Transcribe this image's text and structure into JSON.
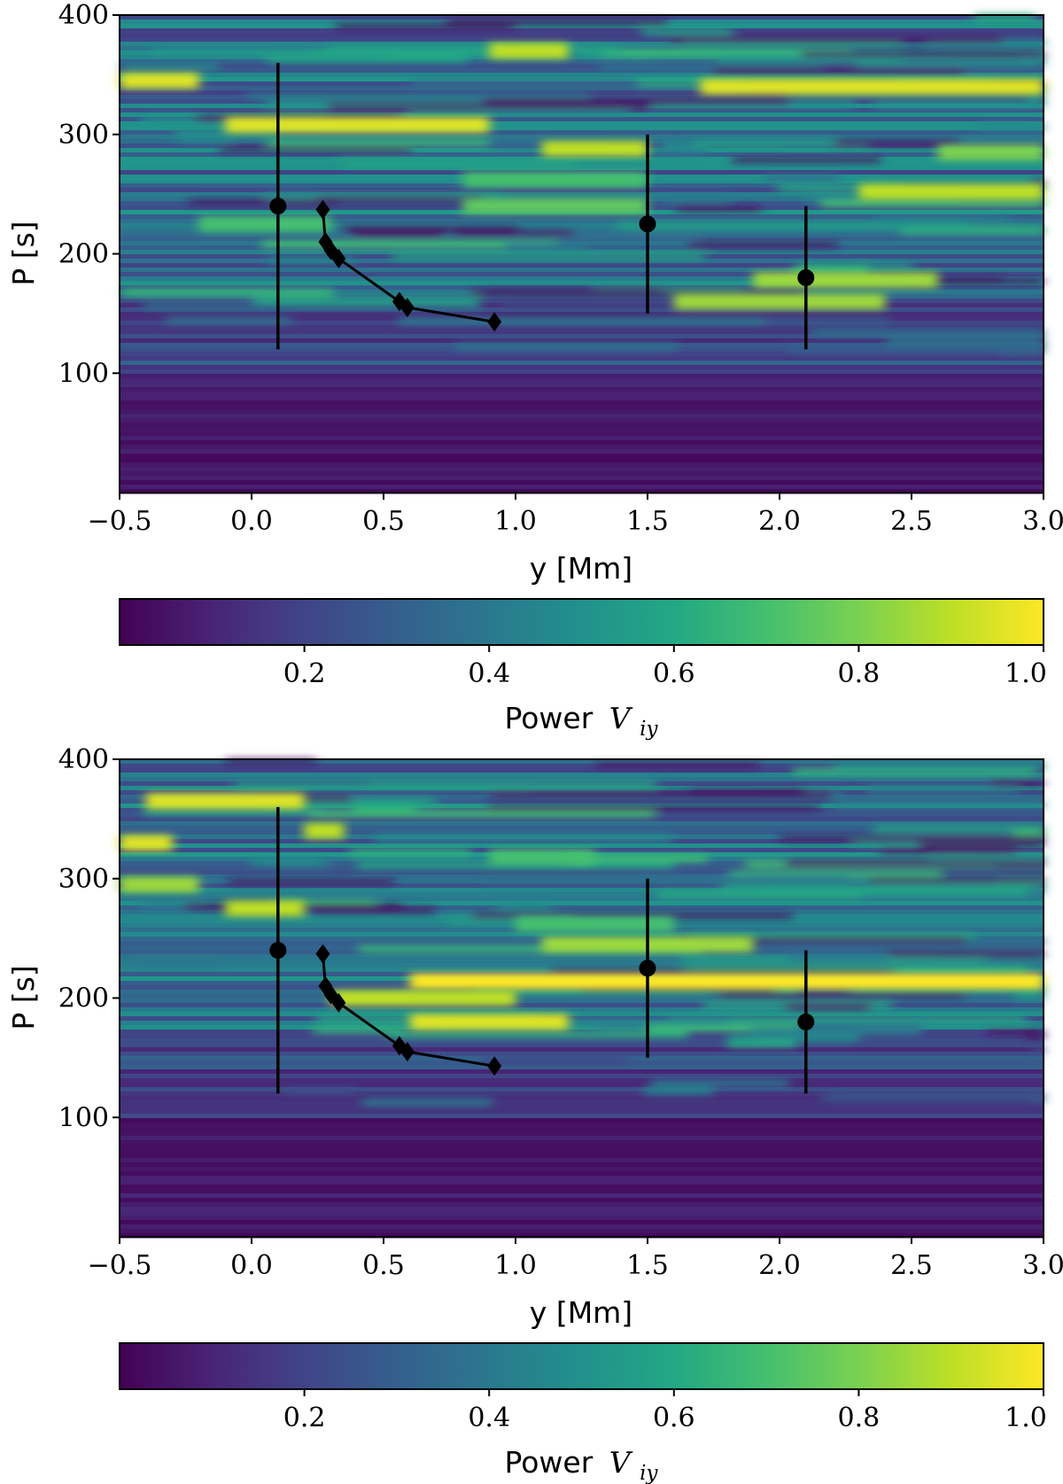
{
  "chart_data": [
    {
      "type": "heatmap",
      "panel": "top",
      "xlabel": "y [Mm]",
      "ylabel": "P [s]",
      "xlim": [
        -0.5,
        3.0
      ],
      "ylim": [
        0,
        400
      ],
      "xticks": [
        -0.5,
        0.0,
        0.5,
        1.0,
        1.5,
        2.0,
        2.5,
        3.0
      ],
      "xtick_labels": [
        "−0.5",
        "0.0",
        "0.5",
        "1.0",
        "1.5",
        "2.0",
        "2.5",
        "3.0"
      ],
      "yticks": [
        100,
        200,
        300,
        400
      ],
      "ytick_labels": [
        "100",
        "200",
        "300",
        "400"
      ],
      "colormap": "viridis",
      "colorbar": {
        "label_prefix": "Power",
        "label_var": "V",
        "label_sub": "iy",
        "range": [
          0,
          1.0
        ],
        "ticks": [
          0.2,
          0.4,
          0.6,
          0.8,
          1.0
        ],
        "tick_labels": [
          "0.2",
          "0.4",
          "0.6",
          "0.8",
          "1.0"
        ]
      },
      "bright_bands": [
        {
          "y_range": [
            -0.5,
            -0.2
          ],
          "period": 345,
          "intensity": 0.95
        },
        {
          "y_range": [
            -0.1,
            0.9
          ],
          "period": 308,
          "intensity": 0.95
        },
        {
          "y_range": [
            0.9,
            1.2
          ],
          "period": 370,
          "intensity": 0.9
        },
        {
          "y_range": [
            1.7,
            3.0
          ],
          "period": 340,
          "intensity": 0.95
        },
        {
          "y_range": [
            1.1,
            1.5
          ],
          "period": 288,
          "intensity": 0.9
        },
        {
          "y_range": [
            2.6,
            3.0
          ],
          "period": 285,
          "intensity": 0.8
        },
        {
          "y_range": [
            0.8,
            1.5
          ],
          "period": 262,
          "intensity": 0.7
        },
        {
          "y_range": [
            2.3,
            3.0
          ],
          "period": 252,
          "intensity": 0.9
        },
        {
          "y_range": [
            0.8,
            1.5
          ],
          "period": 240,
          "intensity": 0.75
        },
        {
          "y_range": [
            1.9,
            2.6
          ],
          "period": 178,
          "intensity": 0.85
        },
        {
          "y_range": [
            1.6,
            2.4
          ],
          "period": 160,
          "intensity": 0.85
        },
        {
          "y_range": [
            -0.2,
            0.3
          ],
          "period": 225,
          "intensity": 0.7
        }
      ],
      "diamond_series": {
        "marker": "diamond",
        "x": [
          0.27,
          0.28,
          0.3,
          0.33,
          0.56,
          0.59,
          0.92
        ],
        "y": [
          237,
          210,
          203,
          196,
          160,
          155,
          143
        ]
      },
      "errorbar_series": {
        "marker": "circle",
        "x": [
          0.1,
          1.5,
          2.1
        ],
        "y": [
          240,
          225,
          180
        ],
        "y_low": [
          120,
          150,
          120
        ],
        "y_high": [
          360,
          300,
          240
        ]
      }
    },
    {
      "type": "heatmap",
      "panel": "bottom",
      "xlabel": "y [Mm]",
      "ylabel": "P [s]",
      "xlim": [
        -0.5,
        3.0
      ],
      "ylim": [
        0,
        400
      ],
      "xticks": [
        -0.5,
        0.0,
        0.5,
        1.0,
        1.5,
        2.0,
        2.5,
        3.0
      ],
      "xtick_labels": [
        "−0.5",
        "0.0",
        "0.5",
        "1.0",
        "1.5",
        "2.0",
        "2.5",
        "3.0"
      ],
      "yticks": [
        100,
        200,
        300,
        400
      ],
      "ytick_labels": [
        "100",
        "200",
        "300",
        "400"
      ],
      "colormap": "viridis",
      "colorbar": {
        "label_prefix": "Power",
        "label_var": "V",
        "label_sub": "iy",
        "range": [
          0,
          1.0
        ],
        "ticks": [
          0.2,
          0.4,
          0.6,
          0.8,
          1.0
        ],
        "tick_labels": [
          "0.2",
          "0.4",
          "0.6",
          "0.8",
          "1.0"
        ]
      },
      "bright_bands": [
        {
          "y_range": [
            -0.4,
            0.2
          ],
          "period": 365,
          "intensity": 0.95
        },
        {
          "y_range": [
            -0.5,
            -0.3
          ],
          "period": 330,
          "intensity": 0.95
        },
        {
          "y_range": [
            0.2,
            0.35
          ],
          "period": 340,
          "intensity": 0.9
        },
        {
          "y_range": [
            -0.5,
            -0.2
          ],
          "period": 295,
          "intensity": 0.85
        },
        {
          "y_range": [
            -0.1,
            0.2
          ],
          "period": 275,
          "intensity": 0.9
        },
        {
          "y_range": [
            0.9,
            1.3
          ],
          "period": 318,
          "intensity": 0.7
        },
        {
          "y_range": [
            1.1,
            1.9
          ],
          "period": 245,
          "intensity": 0.85
        },
        {
          "y_range": [
            1.0,
            1.6
          ],
          "period": 262,
          "intensity": 0.7
        },
        {
          "y_range": [
            0.6,
            3.0
          ],
          "period": 214,
          "intensity": 1.0
        },
        {
          "y_range": [
            0.3,
            1.0
          ],
          "period": 200,
          "intensity": 0.9
        },
        {
          "y_range": [
            0.6,
            1.2
          ],
          "period": 180,
          "intensity": 0.95
        }
      ],
      "diamond_series": {
        "marker": "diamond",
        "x": [
          0.27,
          0.28,
          0.3,
          0.33,
          0.56,
          0.59,
          0.92
        ],
        "y": [
          237,
          210,
          203,
          196,
          160,
          155,
          143
        ]
      },
      "errorbar_series": {
        "marker": "circle",
        "x": [
          0.1,
          1.5,
          2.1
        ],
        "y": [
          240,
          225,
          180
        ],
        "y_low": [
          120,
          150,
          120
        ],
        "y_high": [
          360,
          300,
          240
        ]
      }
    }
  ]
}
